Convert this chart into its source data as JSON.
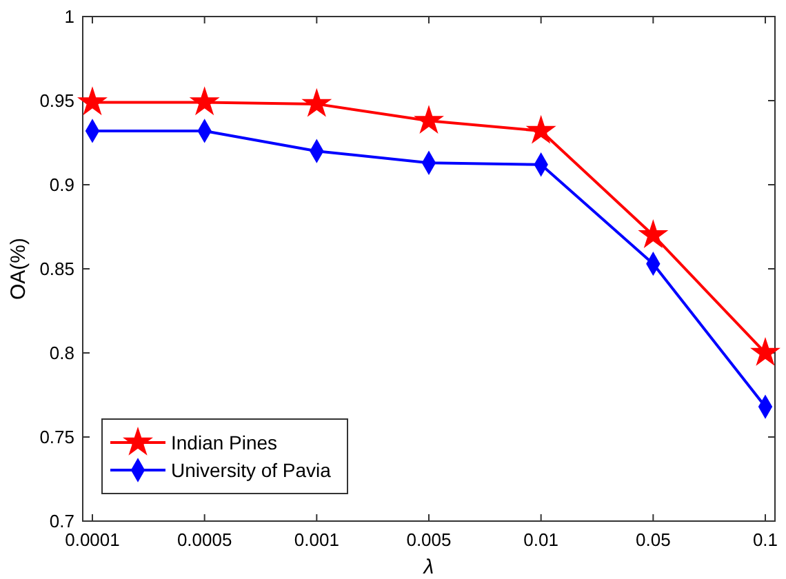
{
  "chart_data": {
    "type": "line",
    "xlabel": "λ",
    "ylabel": "OA(%)",
    "categories": [
      "0.0001",
      "0.0005",
      "0.001",
      "0.005",
      "0.01",
      "0.05",
      "0.1"
    ],
    "series": [
      {
        "name": "Indian Pines",
        "color": "#ff0000",
        "marker": "star",
        "values": [
          0.949,
          0.949,
          0.948,
          0.938,
          0.932,
          0.87,
          0.8
        ]
      },
      {
        "name": "University of Pavia",
        "color": "#0000ff",
        "marker": "diamond",
        "values": [
          0.932,
          0.932,
          0.92,
          0.913,
          0.912,
          0.853,
          0.768
        ]
      }
    ],
    "ylim": [
      0.7,
      1
    ],
    "yticks": [
      0.7,
      0.75,
      0.8,
      0.85,
      0.9,
      0.95,
      1
    ],
    "legend": "bottom left",
    "grid": false,
    "line_style": "solid"
  }
}
